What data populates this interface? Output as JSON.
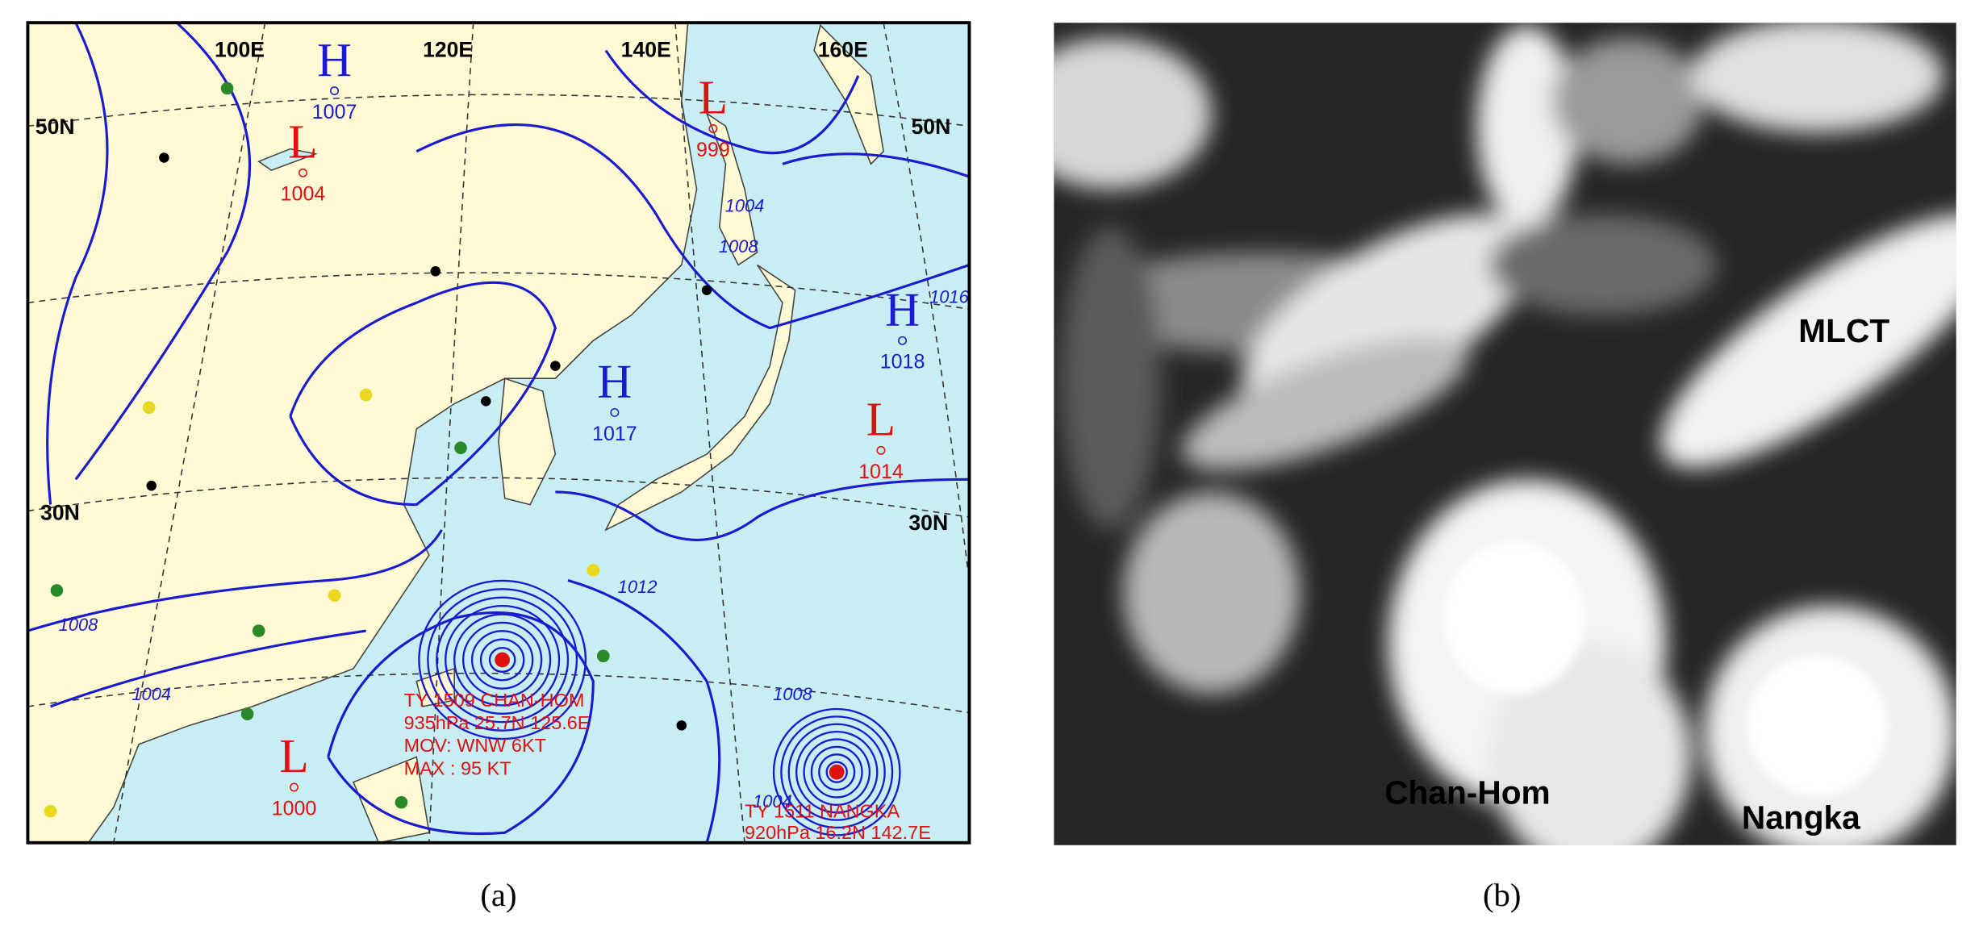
{
  "panel_a": {
    "caption": "(a)",
    "longitude_labels": [
      "100E",
      "120E",
      "140E",
      "160E"
    ],
    "latitude_labels": [
      "50N",
      "50N",
      "30N",
      "30N"
    ],
    "pressure_systems": [
      {
        "letter": "H",
        "pressure": 1007,
        "color": "#1a1ad0"
      },
      {
        "letter": "L",
        "pressure": 1004,
        "color": "#e01010"
      },
      {
        "letter": "L",
        "pressure": 999,
        "color": "#e01010"
      },
      {
        "letter": "H",
        "pressure": 1018,
        "color": "#1a1ad0"
      },
      {
        "letter": "H",
        "pressure": 1017,
        "color": "#1a1ad0"
      },
      {
        "letter": "L",
        "pressure": 1014,
        "color": "#e01010"
      },
      {
        "letter": "L",
        "pressure": 1000,
        "color": "#e01010"
      }
    ],
    "isobar_labels": [
      1004,
      1008,
      1016,
      1008,
      1004,
      1012,
      1008,
      1004
    ],
    "typhoon_chanhom": [
      "TY 1509 CHAN-HOM",
      "935hPa 25.7N 125.6E",
      "MOV: WNW 6KT",
      "MAX : 95 KT"
    ],
    "typhoon_nangka": [
      "TY 1511 NANGKA",
      "920hPa 16.2N 142.7E"
    ]
  },
  "panel_b": {
    "caption": "(b)",
    "labels": [
      "MLCT",
      "Chan-Hom",
      "Nangka"
    ]
  }
}
